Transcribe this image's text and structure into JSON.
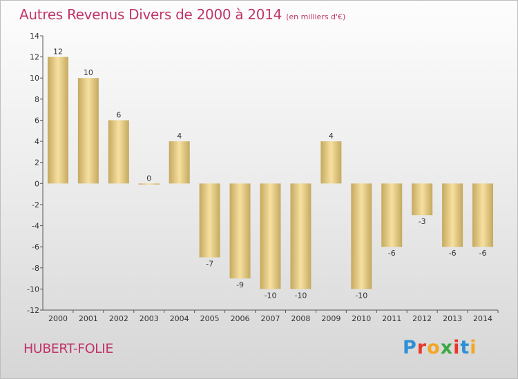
{
  "header": {
    "title": "Autres Revenus Divers de 2000 à 2014",
    "subtitle": "(en milliers d'€)"
  },
  "footer": {
    "commune": "HUBERT-FOLIE",
    "logo_text": "Proxiti",
    "logo_colors": [
      "#2e8fd6",
      "#e8382d",
      "#f5a623",
      "#3aa845",
      "#e8382d",
      "#2e8fd6",
      "#f5a623"
    ]
  },
  "colors": {
    "bar_light": "#f7e0a0",
    "bar_dark": "#c4a95f",
    "axis": "#555555",
    "text": "#333333",
    "title": "#c0356a"
  },
  "chart_data": {
    "type": "bar",
    "title": "Autres Revenus Divers de 2000 à 2014",
    "subtitle": "(en milliers d'€)",
    "categories": [
      "2000",
      "2001",
      "2002",
      "2003",
      "2004",
      "2005",
      "2006",
      "2007",
      "2008",
      "2009",
      "2010",
      "2011",
      "2012",
      "2013",
      "2014"
    ],
    "values": [
      12,
      10,
      6,
      0,
      4,
      -7,
      -9,
      -10,
      -10,
      4,
      -10,
      -6,
      -3,
      -6,
      -6
    ],
    "value_labels": [
      "12",
      "10",
      "6",
      "0",
      "4",
      "-7",
      "-9",
      "-10",
      "-10",
      "4",
      "-10",
      "-6",
      "-3",
      "-6",
      "-6"
    ],
    "ylim": [
      -12,
      14
    ],
    "yticks": [
      "-12",
      "-10",
      "-8",
      "-6",
      "-4",
      "-2",
      "0",
      "2",
      "4",
      "6",
      "8",
      "10",
      "12",
      "14"
    ],
    "xlabel": "",
    "ylabel": "",
    "grid": false,
    "legend": "none"
  }
}
